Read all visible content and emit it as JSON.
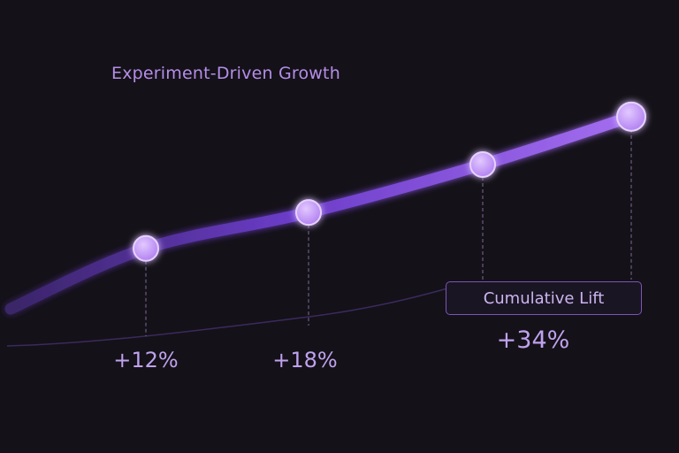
{
  "chart_data": {
    "type": "line",
    "title": "Experiment-Driven Growth",
    "series": [
      {
        "values": [
          12,
          18,
          26,
          34
        ]
      }
    ],
    "labels": [
      "+12%",
      "+18%",
      "",
      "+34%"
    ],
    "annotation": "Cumulative Lift",
    "grid": false,
    "colors": {
      "line": "#7b46d8",
      "marker": "#c9a2f7",
      "text": "#bfa2ee",
      "background": "#141118"
    }
  }
}
